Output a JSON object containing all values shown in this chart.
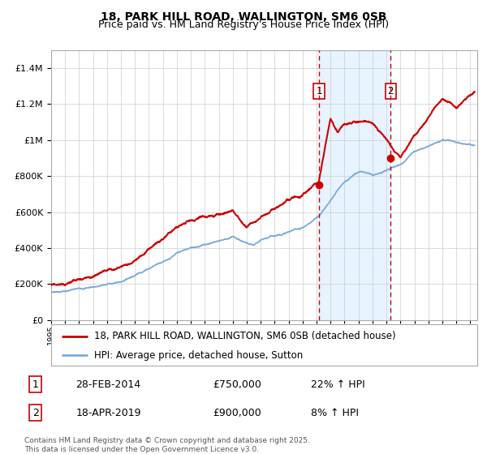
{
  "title_line1": "18, PARK HILL ROAD, WALLINGTON, SM6 0SB",
  "title_line2": "Price paid vs. HM Land Registry's House Price Index (HPI)",
  "ylim": [
    0,
    1500000
  ],
  "xlim_start": 1995.0,
  "xlim_end": 2025.5,
  "event1_date": 2014.17,
  "event2_date": 2019.3,
  "event1_price": 750000,
  "event2_price": 900000,
  "event1_label": "28-FEB-2014",
  "event2_label": "18-APR-2019",
  "event1_hpi": "22% ↑ HPI",
  "event2_hpi": "8% ↑ HPI",
  "legend_red": "18, PARK HILL ROAD, WALLINGTON, SM6 0SB (detached house)",
  "legend_blue": "HPI: Average price, detached house, Sutton",
  "footer": "Contains HM Land Registry data © Crown copyright and database right 2025.\nThis data is licensed under the Open Government Licence v3.0.",
  "red_color": "#cc0000",
  "blue_color": "#7aabdb",
  "bg_shade_color": "#ddeeff",
  "grid_color": "#cccccc"
}
